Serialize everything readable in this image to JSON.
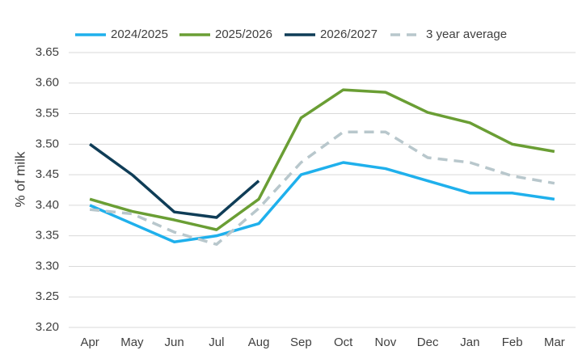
{
  "chart_data": {
    "type": "line",
    "ylabel": "% of milk",
    "categories": [
      "Apr",
      "May",
      "Jun",
      "Jul",
      "Aug",
      "Sep",
      "Oct",
      "Nov",
      "Dec",
      "Jan",
      "Feb",
      "Mar"
    ],
    "series": [
      {
        "name": "2024/2025",
        "color": "#1fb0ec",
        "dash": false,
        "values": [
          3.4,
          3.37,
          3.34,
          3.35,
          3.37,
          3.45,
          3.47,
          3.46,
          3.44,
          3.42,
          3.42,
          3.41
        ]
      },
      {
        "name": "2025/2026",
        "color": "#6a9e34",
        "dash": false,
        "values": [
          3.41,
          3.39,
          3.376,
          3.36,
          3.41,
          3.543,
          3.589,
          3.585,
          3.552,
          3.535,
          3.5,
          3.488
        ]
      },
      {
        "name": "2026/2027",
        "color": "#0f3d57",
        "dash": false,
        "values": [
          3.5,
          3.45,
          3.389,
          3.38,
          3.44,
          null,
          null,
          null,
          null,
          null,
          null,
          null
        ]
      },
      {
        "name": "3 year average",
        "color": "#b8c7cc",
        "dash": true,
        "values": [
          3.393,
          3.386,
          3.356,
          3.336,
          3.395,
          3.47,
          3.52,
          3.52,
          3.478,
          3.47,
          3.448,
          3.436
        ]
      }
    ],
    "ylim": [
      3.2,
      3.65
    ],
    "yticks": [
      {
        "value": 3.2,
        "label": "3.20"
      },
      3.25,
      {
        "value": 3.3,
        "label": "3.30"
      },
      3.35,
      {
        "value": 3.4,
        "label": "3.40"
      },
      3.45,
      {
        "value": 3.5,
        "label": "3.50"
      },
      3.55,
      {
        "value": 3.6,
        "label": "3.60"
      },
      3.65
    ],
    "grid": true,
    "legend": "top"
  }
}
